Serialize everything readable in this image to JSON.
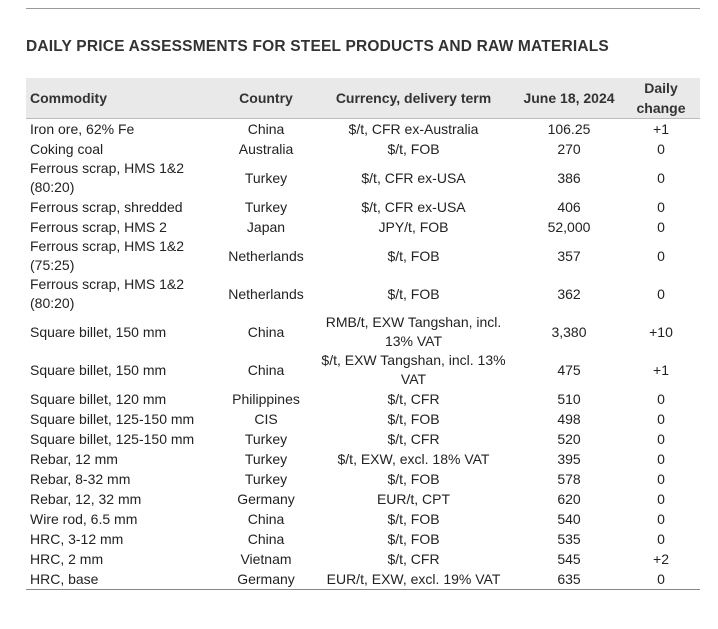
{
  "title": "DAILY PRICE ASSESSMENTS FOR STEEL PRODUCTS AND RAW MATERIALS",
  "table": {
    "header": [
      "Commodity",
      "Country",
      "Currency, delivery term",
      "June 18, 2024",
      "Daily change"
    ],
    "rows": [
      [
        "Iron ore, 62% Fe",
        "China",
        "$/t, CFR ex-Australia",
        "106.25",
        "+1"
      ],
      [
        "Coking coal",
        "Australia",
        "$/t, FOB",
        "270",
        "0"
      ],
      [
        "Ferrous scrap, HMS 1&2 (80:20)",
        "Turkey",
        "$/t, CFR ex-USA",
        "386",
        "0"
      ],
      [
        "Ferrous scrap, shredded",
        "Turkey",
        "$/t, CFR ex-USA",
        "406",
        "0"
      ],
      [
        "Ferrous scrap, HMS 2",
        "Japan",
        "JPY/t, FOB",
        "52,000",
        "0"
      ],
      [
        "Ferrous scrap, HMS 1&2 (75:25)",
        "Netherlands",
        "$/t, FOB",
        "357",
        "0"
      ],
      [
        "Ferrous scrap, HMS 1&2 (80:20)",
        "Netherlands",
        "$/t, FOB",
        "362",
        "0"
      ],
      [
        "Square billet, 150 mm",
        "China",
        "RMB/t, EXW Tangshan, incl. 13% VAT",
        "3,380",
        "+10"
      ],
      [
        "Square billet, 150 mm",
        "China",
        "$/t, EXW Tangshan, incl. 13% VAT",
        "475",
        "+1"
      ],
      [
        "Square billet, 120 mm",
        "Philippines",
        "$/t, CFR",
        "510",
        "0"
      ],
      [
        "Square billet, 125-150 mm",
        "CIS",
        "$/t, FOB",
        "498",
        "0"
      ],
      [
        "Square billet, 125-150 mm",
        "Turkey",
        "$/t, CFR",
        "520",
        "0"
      ],
      [
        "Rebar, 12 mm",
        "Turkey",
        "$/t, EXW, excl. 18% VAT",
        "395",
        "0"
      ],
      [
        "Rebar, 8-32 mm",
        "Turkey",
        "$/t, FOB",
        "578",
        "0"
      ],
      [
        "Rebar, 12, 32 mm",
        "Germany",
        "EUR/t, CPT",
        "620",
        "0"
      ],
      [
        "Wire rod, 6.5 mm",
        "China",
        "$/t, FOB",
        "540",
        "0"
      ],
      [
        "HRC, 3-12 mm",
        "China",
        "$/t, FOB",
        "535",
        "0"
      ],
      [
        "HRC, 2 mm",
        "Vietnam",
        "$/t, CFR",
        "545",
        "+2"
      ],
      [
        "HRC, base",
        "Germany",
        "EUR/t, EXW, excl. 19% VAT",
        "635",
        "0"
      ]
    ]
  }
}
